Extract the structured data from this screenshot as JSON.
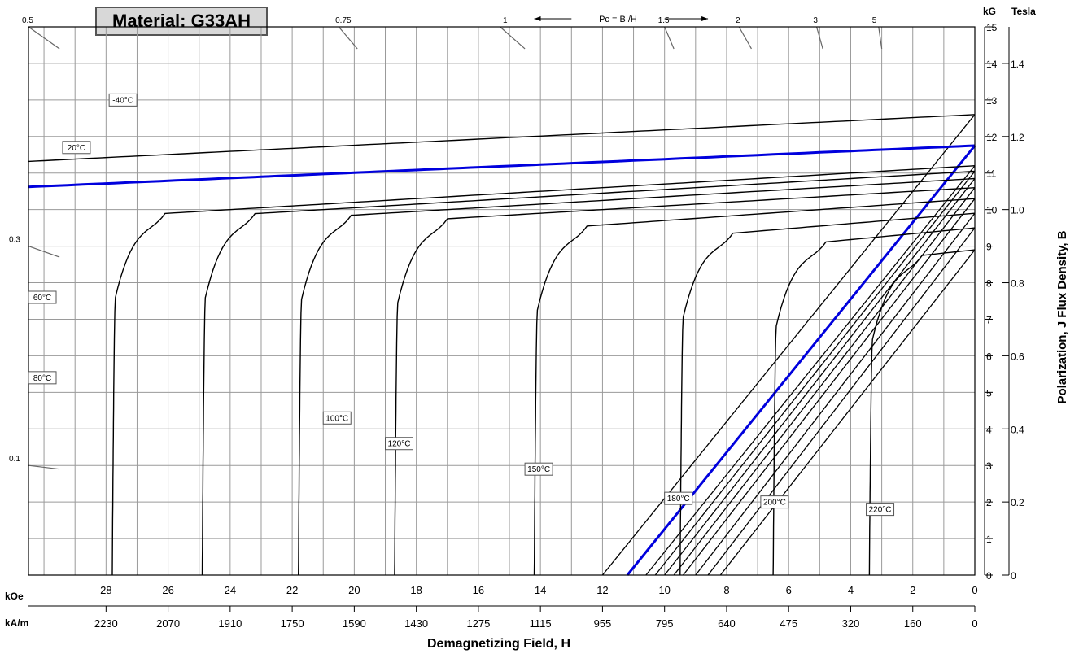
{
  "chart_data": {
    "type": "line",
    "title": "Material: G33AH",
    "xlabel": "Demagnetizing Field, H",
    "ylabel_left": "",
    "ylabel_right": "Polarization,  J        Flux Density,  B",
    "x_unit_primary": "kOe",
    "x_unit_secondary": "kA/m",
    "y_unit_primary": "kG",
    "y_unit_secondary": "Tesla",
    "xlim": [
      30.5,
      0
    ],
    "ylim": [
      0,
      15
    ],
    "x_ticks_koe": [
      "28",
      "26",
      "24",
      "22",
      "20",
      "18",
      "16",
      "14",
      "12",
      "10",
      "8",
      "6",
      "4",
      "2",
      "0"
    ],
    "x_ticks_koe_values": [
      28,
      26,
      24,
      22,
      20,
      18,
      16,
      14,
      12,
      10,
      8,
      6,
      4,
      2,
      0
    ],
    "x_ticks_kam": [
      "2230",
      "2070",
      "1910",
      "1750",
      "1590",
      "1430",
      "1275",
      "1115",
      "955",
      "795",
      "640",
      "475",
      "320",
      "160",
      "0"
    ],
    "x_ticks_kam_values": [
      28,
      26,
      24,
      22,
      20,
      18,
      16,
      14,
      12,
      10,
      8,
      6,
      4,
      2,
      0
    ],
    "y_ticks_kg": [
      "0",
      "1",
      "2",
      "3",
      "4",
      "5",
      "6",
      "7",
      "8",
      "9",
      "10",
      "11",
      "12",
      "13",
      "14",
      "15"
    ],
    "y_ticks_kg_values": [
      0,
      1,
      2,
      3,
      4,
      5,
      6,
      7,
      8,
      9,
      10,
      11,
      12,
      13,
      14,
      15
    ],
    "y_ticks_tesla": [
      "0",
      "0.2",
      "0.4",
      "0.6",
      "0.8",
      "1.0",
      "1.2",
      "1.4"
    ],
    "y_ticks_tesla_values": [
      0,
      2,
      4,
      6,
      8,
      10,
      12,
      14
    ],
    "pc_marker_label": "Pc = B  /H",
    "pc_labels": [
      {
        "text": "0.5",
        "x": 30.5,
        "y": 15
      },
      {
        "text": "0.75",
        "x": 20.4,
        "y": 15
      },
      {
        "text": "1",
        "x": 15.0,
        "y": 15
      },
      {
        "text": "1.5",
        "x": 10.0,
        "y": 15
      },
      {
        "text": "2",
        "x": 7.5,
        "y": 15
      },
      {
        "text": "3",
        "x": 5.0,
        "y": 15
      },
      {
        "text": "5",
        "x": 3.1,
        "y": 15
      },
      {
        "text": "0.3",
        "x": 30.5,
        "y": 9
      },
      {
        "text": "0.1",
        "x": 30.5,
        "y": 3
      }
    ],
    "pc_lines": [
      {
        "x0": 30.5,
        "y0": 15,
        "x1": 29.5,
        "y1": 14.4
      },
      {
        "x0": 20.5,
        "y0": 15,
        "x1": 19.9,
        "y1": 14.4
      },
      {
        "x0": 15.3,
        "y0": 15,
        "x1": 14.5,
        "y1": 14.4
      },
      {
        "x0": 10.0,
        "y0": 15,
        "x1": 9.7,
        "y1": 14.4
      },
      {
        "x0": 7.6,
        "y0": 15,
        "x1": 7.2,
        "y1": 14.4
      },
      {
        "x0": 5.1,
        "y0": 15,
        "x1": 4.9,
        "y1": 14.4
      },
      {
        "x0": 3.1,
        "y0": 15,
        "x1": 3.0,
        "y1": 14.4
      },
      {
        "x0": 30.5,
        "y0": 9,
        "x1": 29.5,
        "y1": 8.7
      },
      {
        "x0": 30.5,
        "y0": 3,
        "x1": 29.5,
        "y1": 2.9
      }
    ],
    "j_curves": [
      {
        "name": "-40°C",
        "label_x": 27.9,
        "label_y": 12.9,
        "color": "#000000",
        "hci": null,
        "j0": 12.6,
        "slope": 0.042
      },
      {
        "name": "20°C",
        "label_x": 29.4,
        "label_y": 11.6,
        "color": "#0000dd",
        "hci": null,
        "j0": 11.75,
        "slope": 0.037
      },
      {
        "name": "60°C",
        "label_x": 30.5,
        "label_y": 7.5,
        "color": "#000000",
        "hci": 27.8,
        "j0": 11.2,
        "slope": 0.05
      },
      {
        "name": "80°C",
        "label_x": 30.5,
        "label_y": 5.3,
        "color": "#000000",
        "hci": 24.9,
        "j0": 11.05,
        "slope": 0.05
      },
      {
        "name": "100°C",
        "label_x": 21.0,
        "label_y": 4.2,
        "color": "#000000",
        "hci": 21.8,
        "j0": 10.85,
        "slope": 0.05
      },
      {
        "name": "120°C",
        "label_x": 19.0,
        "label_y": 3.5,
        "color": "#000000",
        "hci": 18.7,
        "j0": 10.6,
        "slope": 0.05
      },
      {
        "name": "150°C",
        "label_x": 14.5,
        "label_y": 2.8,
        "color": "#000000",
        "hci": 14.2,
        "j0": 10.3,
        "slope": 0.06
      },
      {
        "name": "180°C",
        "label_x": 10.0,
        "label_y": 2.0,
        "color": "#000000",
        "hci": 9.5,
        "j0": 9.9,
        "slope": 0.07
      },
      {
        "name": "200°C",
        "label_x": 6.9,
        "label_y": 1.9,
        "color": "#000000",
        "hci": 6.5,
        "j0": 9.5,
        "slope": 0.08
      },
      {
        "name": "220°C",
        "label_x": 3.5,
        "label_y": 1.7,
        "color": "#000000",
        "hci": 3.4,
        "j0": 8.9,
        "slope": 0.09
      }
    ],
    "b_lines": [
      {
        "name": "-40°C",
        "color": "#000000",
        "x0": 12.0,
        "y1": 12.6
      },
      {
        "name": "20°C",
        "color": "#0000dd",
        "x0": 11.2,
        "y1": 11.75
      },
      {
        "name": "60°C",
        "color": "#000000",
        "x0": 10.6,
        "y1": 11.2
      },
      {
        "name": "80°C",
        "color": "#000000",
        "x0": 10.3,
        "y1": 11.05
      },
      {
        "name": "100°C",
        "color": "#000000",
        "x0": 10.0,
        "y1": 10.85
      },
      {
        "name": "120°C",
        "color": "#000000",
        "x0": 9.7,
        "y1": 10.6
      },
      {
        "name": "150°C",
        "color": "#000000",
        "x0": 9.4,
        "y1": 10.3
      },
      {
        "name": "180°C",
        "color": "#000000",
        "x0": 9.0,
        "y1": 9.9
      },
      {
        "name": "200°C",
        "color": "#000000",
        "x0": 8.6,
        "y1": 9.5
      },
      {
        "name": "220°C",
        "color": "#000000",
        "x0": 8.2,
        "y1": 8.9
      }
    ],
    "grid": true
  }
}
